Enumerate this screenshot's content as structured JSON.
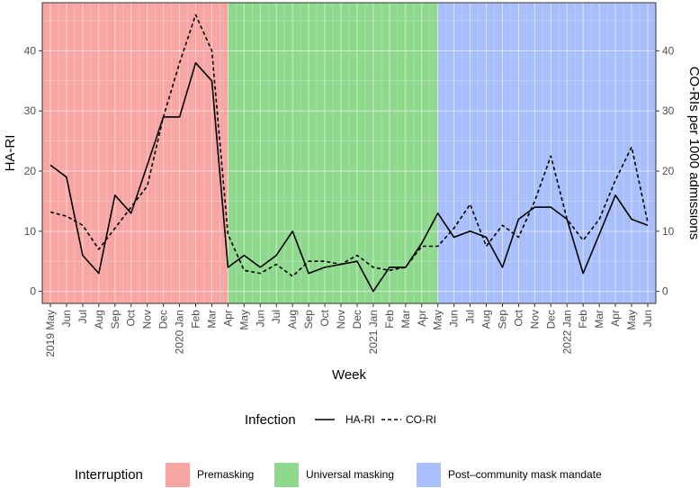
{
  "chart_data": {
    "type": "line",
    "xlabel": "Week",
    "ylabel": "HA-RI",
    "y2label": "CO-RIs per 1000 admissions",
    "ylim": [
      -2,
      48
    ],
    "y2lim": [
      -2,
      48
    ],
    "yticks": [
      0,
      10,
      20,
      30,
      40
    ],
    "y2ticks": [
      0,
      10,
      20,
      30,
      40
    ],
    "grid": true,
    "categories": [
      "2019 May",
      "Jun",
      "Jul",
      "Aug",
      "Sep",
      "Oct",
      "Nov",
      "Dec",
      "2020 Jan",
      "Feb",
      "Mar",
      "Apr",
      "May",
      "Jun",
      "Jul",
      "Aug",
      "Sep",
      "Oct",
      "Nov",
      "Dec",
      "2021 Jan",
      "Feb",
      "Mar",
      "Apr",
      "May",
      "Jun",
      "Jul",
      "Aug",
      "Sep",
      "Oct",
      "Nov",
      "Dec",
      "2022 Jan",
      "Feb",
      "Mar",
      "Apr",
      "May",
      "Jun"
    ],
    "series": [
      {
        "name": "HA-RI",
        "dash": "solid",
        "values": [
          21,
          19,
          6,
          3,
          16,
          13,
          21,
          29,
          29,
          38,
          35,
          4,
          6,
          4,
          6,
          10,
          3,
          4,
          4.5,
          5,
          0,
          4,
          4,
          8,
          13,
          9,
          10,
          9,
          4,
          12,
          14,
          14,
          12,
          3,
          9.5,
          16,
          12,
          11
        ]
      },
      {
        "name": "CO-RI",
        "dash": "dashed",
        "values": [
          13.2,
          12.5,
          11,
          7,
          10.5,
          14,
          17.5,
          29,
          38,
          46,
          40,
          9.5,
          3.5,
          3,
          4.5,
          2.5,
          5,
          5,
          4.5,
          6,
          4,
          3.5,
          4,
          7.5,
          7.5,
          10.5,
          14.5,
          7.5,
          11,
          9,
          15,
          22.5,
          12,
          8.5,
          12,
          18.5,
          24,
          11.5
        ]
      }
    ],
    "shading": [
      {
        "label": "Premasking",
        "from": "2019 May",
        "to": "Apr",
        "from_index": 0,
        "to_index": 11,
        "color": "#F8A6A3"
      },
      {
        "label": "Universal masking",
        "from": "Apr",
        "to": "May",
        "from_index": 11,
        "to_index": 24,
        "color": "#8ED98E"
      },
      {
        "label": "Post–community mask mandate",
        "from": "May",
        "to": "Jun",
        "from_index": 24,
        "to_index": 37,
        "color": "#A8BFFB"
      }
    ],
    "legend_infection": {
      "title": "Infection",
      "items": [
        {
          "label": "HA-RI",
          "dash": "solid"
        },
        {
          "label": "CO-RI",
          "dash": "dashed"
        }
      ],
      "placement": "bottom"
    },
    "legend_interruption": {
      "title": "Interruption",
      "items": [
        "Premasking",
        "Universal masking",
        "Post–community mask mandate"
      ],
      "placement": "bottom"
    }
  },
  "colors": {
    "line": "#000000",
    "tick_text": "#4d4d4d",
    "panel_border": "#333333",
    "grid": "#ffffff"
  }
}
